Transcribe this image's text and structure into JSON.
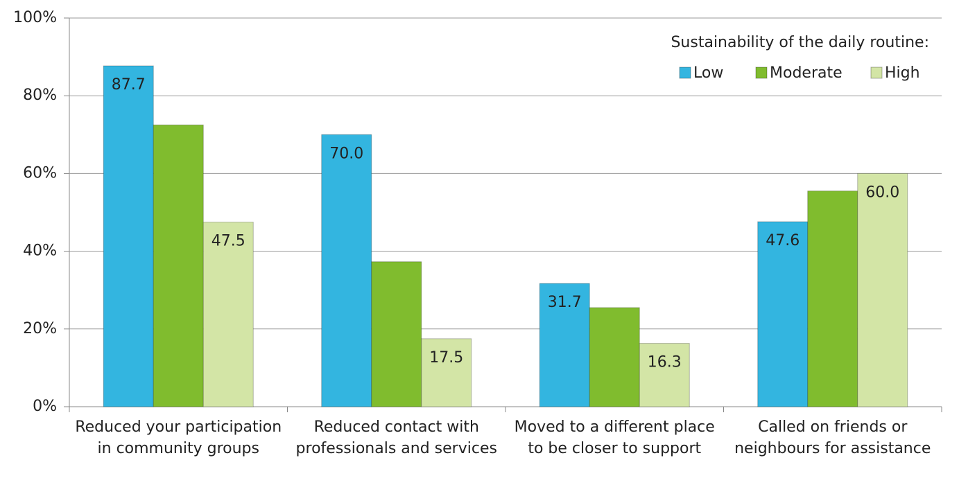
{
  "chart_data": {
    "type": "bar",
    "categories": [
      "Reduced your participation in community groups",
      "Reduced contact with professionals and services",
      "Moved to a different place to be closer to support",
      "Called on friends or neighbours for assistance"
    ],
    "series": [
      {
        "name": "Low",
        "color": "#33b5e0",
        "values": [
          87.7,
          70.0,
          31.7,
          47.6
        ],
        "value_labels": [
          "87.7",
          "70.0",
          "31.7",
          "47.6"
        ]
      },
      {
        "name": "Moderate",
        "color": "#80bc2e",
        "values": [
          72.5,
          37.3,
          25.5,
          55.5
        ]
      },
      {
        "name": "High",
        "color": "#d3e5a6",
        "values": [
          47.5,
          17.5,
          16.3,
          60.0
        ],
        "value_labels": [
          "47.5",
          "17.5",
          "16.3",
          "60.0"
        ]
      }
    ],
    "legend_title": "Sustainability of the daily routine:",
    "legend": "top-right",
    "ylim": [
      0,
      100
    ],
    "yticks": [
      {
        "value": 0,
        "label": "0%"
      },
      {
        "value": 20,
        "label": "20%"
      },
      {
        "value": 40,
        "label": "40%"
      },
      {
        "value": 60,
        "label": "60%"
      },
      {
        "value": 80,
        "label": "80%"
      },
      {
        "value": 100,
        "label": "100%"
      }
    ],
    "grid": true
  }
}
